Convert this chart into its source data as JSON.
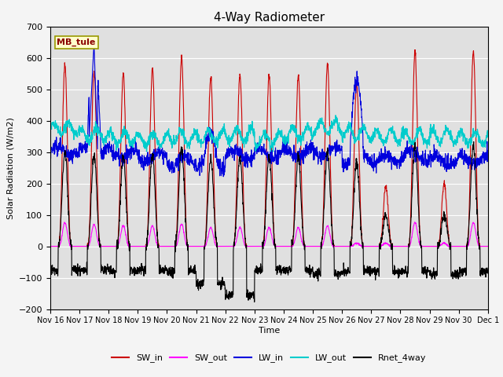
{
  "title": "4-Way Radiometer",
  "xlabel": "Time",
  "ylabel": "Solar Radiation (W/m2)",
  "station_label": "MB_tule",
  "ylim": [
    -200,
    700
  ],
  "yticks": [
    -200,
    -100,
    0,
    100,
    200,
    300,
    400,
    500,
    600,
    700
  ],
  "fig_bg": "#f4f4f4",
  "plot_bg": "#e0e0e0",
  "grid_color": "#ffffff",
  "series": [
    {
      "name": "SW_in",
      "color": "#cc0000",
      "lw": 0.8
    },
    {
      "name": "SW_out",
      "color": "#ff00ff",
      "lw": 0.8
    },
    {
      "name": "LW_in",
      "color": "#0000dd",
      "lw": 0.8
    },
    {
      "name": "LW_out",
      "color": "#00cccc",
      "lw": 0.9
    },
    {
      "name": "Rnet_4way",
      "color": "#000000",
      "lw": 0.8
    }
  ],
  "x_tick_labels": [
    "Nov 16",
    "Nov 17",
    "Nov 18",
    "Nov 19",
    "Nov 20",
    "Nov 21",
    "Nov 22",
    "Nov 23",
    "Nov 24",
    "Nov 25",
    "Nov 26",
    "Nov 27",
    "Nov 28",
    "Nov 29",
    "Nov 30",
    "Dec 1"
  ],
  "n_days": 15,
  "pts_per_day": 144,
  "sw_in_peaks": [
    580,
    555,
    550,
    565,
    600,
    540,
    545,
    545,
    545,
    580,
    520,
    190,
    620,
    200,
    620
  ],
  "sw_out_peaks": [
    75,
    70,
    65,
    65,
    70,
    60,
    60,
    60,
    60,
    65,
    10,
    10,
    75,
    10,
    75
  ],
  "lw_in_base": [
    305,
    300,
    295,
    285,
    270,
    265,
    290,
    295,
    300,
    300,
    275,
    275,
    290,
    275,
    280
  ],
  "lw_in_spike_day": [
    0,
    640,
    0,
    0,
    0,
    160,
    0,
    0,
    0,
    0,
    480,
    0,
    0,
    0,
    0
  ],
  "lw_out_vals": [
    375,
    355,
    345,
    340,
    345,
    350,
    355,
    340,
    360,
    380,
    360,
    350,
    350,
    350,
    345
  ],
  "rnet_night": [
    -75,
    -75,
    -80,
    -75,
    -80,
    -120,
    -75,
    -75,
    -75,
    -90,
    -80,
    -80,
    -80,
    -90,
    -80
  ],
  "rnet_deep_dip_day": 6
}
